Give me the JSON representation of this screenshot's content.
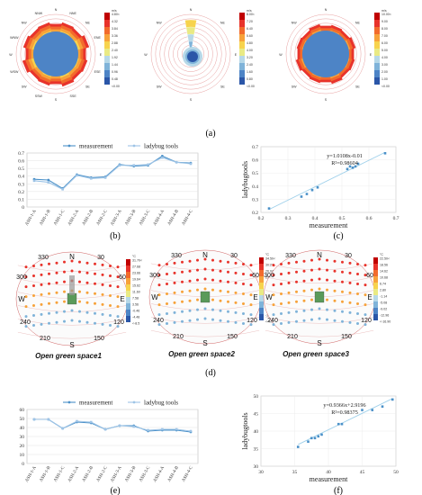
{
  "panel_labels": {
    "a": "(a)",
    "b": "(b)",
    "c": "(c)",
    "d": "(d)",
    "e": "(e)",
    "f": "(f)"
  },
  "colors": {
    "measurement": "#4a90c8",
    "ladybug": "#9ec4e6",
    "regression": "#9fd0ea",
    "scale": [
      "#c00000",
      "#e8332b",
      "#f26b2c",
      "#f7a23a",
      "#f7d34d",
      "#e9ea84",
      "#b6d8e8",
      "#7fb3d9",
      "#4d84c6",
      "#2b56a8"
    ]
  },
  "roses": [
    {
      "unit": "m/s",
      "scale": [
        "4.80<",
        "4.32",
        "3.84",
        "3.36",
        "2.88",
        "2.40",
        "1.92",
        "1.44",
        "0.96",
        "0.48",
        "<0.00"
      ]
    },
    {
      "unit": "m/s",
      "scale": [
        "8.00<",
        "7.20",
        "6.40",
        "5.60",
        "4.80",
        "4.00",
        "3.20",
        "2.40",
        "1.60",
        "0.80",
        "<0.00"
      ]
    },
    {
      "unit": "m/s",
      "scale": [
        "10.00<",
        "9.00",
        "8.00",
        "7.00",
        "6.00",
        "5.00",
        "4.00",
        "3.00",
        "2.00",
        "1.00",
        "<0.00"
      ]
    }
  ],
  "compass": [
    "N",
    "NNE",
    "NE",
    "ENE",
    "E",
    "ESE",
    "SE",
    "SSE",
    "S",
    "SSW",
    "SW",
    "WSW",
    "W",
    "WNW",
    "NW",
    "NNW"
  ],
  "sky_domes": [
    {
      "name": "Open green space1",
      "scale": [
        "31.70<",
        "27.68",
        "23.66",
        "19.64",
        "15.62",
        "11.60",
        "7.58",
        "3.56",
        "-0.46",
        "-4.48",
        "<-8.5"
      ]
    },
    {
      "name": "Open green space2",
      "scale": [
        "34.50<",
        "30.27",
        "26.04",
        "21.81",
        "17.58",
        "13.35",
        "9.12",
        "4.89",
        "0.66",
        "-3.57",
        "<-7.80"
      ]
    },
    {
      "name": "Open green space3",
      "scale": [
        "22.50<",
        "18.56",
        "14.62",
        "10.68",
        "6.74",
        "2.80",
        "-1.14",
        "-5.08",
        "-9.02",
        "-12.96",
        "<-16.90"
      ]
    }
  ],
  "dome_labels": {
    "n": "N",
    "s": "S",
    "e": "E",
    "w": "W",
    "t330": "330",
    "t30": "30",
    "t300": "300",
    "t60": "60",
    "t240": "240",
    "t120": "120",
    "t210": "210",
    "t150": "150",
    "unit": "°C"
  },
  "chart_data": [
    {
      "type": "line",
      "panel": "b",
      "categories": [
        "ASH-1-A",
        "ASH-1-B",
        "ASH-1-C",
        "ASH-2-A",
        "ASH-2-B",
        "ASH-2-C",
        "ASH-3-A",
        "ASH-3-B",
        "ASH-3-C",
        "ASH-4-A",
        "ASH-4-B",
        "ASH-4-C"
      ],
      "series": [
        {
          "name": "measurement",
          "values": [
            0.36,
            0.35,
            0.24,
            0.42,
            0.38,
            0.39,
            0.55,
            0.53,
            0.54,
            0.66,
            0.58,
            0.57
          ]
        },
        {
          "name": "ladybug tools",
          "values": [
            0.34,
            0.32,
            0.23,
            0.41,
            0.37,
            0.38,
            0.54,
            0.54,
            0.55,
            0.64,
            0.58,
            0.56
          ]
        }
      ],
      "ylim": [
        0,
        0.7
      ],
      "yticks": [
        "0",
        "0.1",
        "0.2",
        "0.3",
        "0.4",
        "0.5",
        "0.6",
        "0.7"
      ],
      "grid": true,
      "legend": "top"
    },
    {
      "type": "scatter",
      "panel": "c",
      "x": [
        0.23,
        0.35,
        0.37,
        0.39,
        0.41,
        0.52,
        0.53,
        0.54,
        0.56,
        0.55,
        0.66
      ],
      "y": [
        0.23,
        0.32,
        0.34,
        0.37,
        0.39,
        0.53,
        0.55,
        0.54,
        0.57,
        0.55,
        0.65
      ],
      "xlabel": "measurement",
      "ylabel": "ladybugtools",
      "xlim": [
        0.2,
        0.7
      ],
      "ylim": [
        0.2,
        0.7
      ],
      "xticks": [
        "0.2",
        "0.3",
        "0.4",
        "0.5",
        "0.6",
        "0.7"
      ],
      "yticks": [
        "0.2",
        "0.3",
        "0.4",
        "0.5",
        "0.6",
        "0.7"
      ],
      "fit": {
        "slope": 1.0108,
        "intercept": -0.01
      },
      "equation": "y=1.0108x-0.01",
      "r2": "R²=0.98604"
    },
    {
      "type": "line",
      "panel": "e",
      "categories": [
        "ASH-1-A",
        "ASH-1-B",
        "ASH-1-C",
        "ASH-2-A",
        "ASH-2-B",
        "ASH-2-C",
        "ASH-3-A",
        "ASH-3-B",
        "ASH-3-C",
        "ASH-4-A",
        "ASH-4-B",
        "ASH-4-C"
      ],
      "series": [
        {
          "name": "measurement",
          "values": [
            49,
            49,
            39,
            46,
            45,
            38,
            42,
            42,
            36,
            37,
            37,
            35
          ]
        },
        {
          "name": "ladybug tools",
          "values": [
            49,
            49,
            39,
            47,
            46,
            38,
            42,
            41,
            37,
            38,
            38,
            36
          ]
        }
      ],
      "ylim": [
        0,
        60
      ],
      "yticks": [
        "0",
        "10",
        "20",
        "30",
        "40",
        "50",
        "60"
      ],
      "grid": true,
      "legend": "top"
    },
    {
      "type": "scatter",
      "panel": "f",
      "x": [
        35.5,
        37,
        37.5,
        38,
        38.5,
        39,
        41.5,
        42,
        45,
        46.5,
        48,
        49.5
      ],
      "y": [
        35.5,
        37,
        38,
        38,
        38.5,
        39,
        42,
        42,
        46,
        46,
        47,
        49
      ],
      "xlabel": "measurement",
      "ylabel": "ladybugtools",
      "xlim": [
        30,
        50
      ],
      "ylim": [
        30,
        50
      ],
      "xticks": [
        "30",
        "35",
        "40",
        "45",
        "50"
      ],
      "yticks": [
        "30",
        "35",
        "40",
        "45",
        "50"
      ],
      "fit": {
        "slope": 0.9366,
        "intercept": 2.9196
      },
      "equation": "y=0.9366x+2.9196",
      "r2": "R²=0.98375"
    }
  ]
}
